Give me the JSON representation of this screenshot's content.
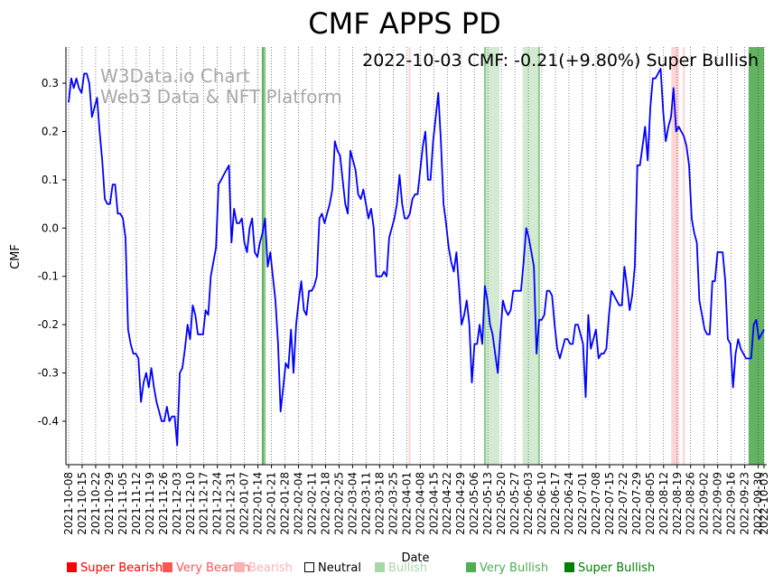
{
  "chart_data": {
    "type": "line",
    "title": "CMF APPS PD",
    "annotation": "2022-10-03 CMF: -0.21(+9.80%) Super Bullish",
    "watermark": [
      "W3Data.io Chart",
      "Web3 Data & NFT Platform"
    ],
    "xlabel": "Date",
    "ylabel": "CMF",
    "ylim": [
      -0.49,
      0.375
    ],
    "yticks": [
      0.3,
      0.2,
      0.1,
      0.0,
      -0.1,
      -0.2,
      -0.3,
      -0.4
    ],
    "x_start": "2021-10-08",
    "x_end": "2022-10-03",
    "xticks": [
      "2021-10-08",
      "2021-10-15",
      "2021-10-22",
      "2021-10-29",
      "2021-11-05",
      "2021-11-12",
      "2021-11-19",
      "2021-11-26",
      "2021-12-03",
      "2021-12-10",
      "2021-12-17",
      "2021-12-24",
      "2021-12-31",
      "2022-01-07",
      "2022-01-14",
      "2022-01-21",
      "2022-01-28",
      "2022-02-04",
      "2022-02-11",
      "2022-02-18",
      "2022-02-25",
      "2022-03-04",
      "2022-03-11",
      "2022-03-18",
      "2022-03-25",
      "2022-04-01",
      "2022-04-08",
      "2022-04-15",
      "2022-04-22",
      "2022-04-29",
      "2022-05-06",
      "2022-05-13",
      "2022-05-20",
      "2022-05-27",
      "2022-06-03",
      "2022-06-10",
      "2022-06-17",
      "2022-06-24",
      "2022-07-01",
      "2022-07-08",
      "2022-07-15",
      "2022-07-22",
      "2022-07-29",
      "2022-08-05",
      "2022-08-12",
      "2022-08-19",
      "2022-08-26",
      "2022-09-02",
      "2022-09-09",
      "2022-09-16",
      "2022-09-23",
      "2022-09-30",
      "2022-10-03"
    ],
    "series": [
      {
        "name": "CMF",
        "color": "#0000ff",
        "values": [
          0.26,
          0.31,
          0.29,
          0.31,
          0.29,
          0.28,
          0.32,
          0.32,
          0.3,
          0.23,
          0.25,
          0.27,
          0.2,
          0.14,
          0.06,
          0.05,
          0.05,
          0.09,
          0.09,
          0.03,
          0.03,
          0.02,
          -0.02,
          -0.21,
          -0.24,
          -0.26,
          -0.26,
          -0.27,
          -0.36,
          -0.32,
          -0.3,
          -0.33,
          -0.29,
          -0.33,
          -0.36,
          -0.38,
          -0.4,
          -0.4,
          -0.37,
          -0.4,
          -0.39,
          -0.39,
          -0.45,
          -0.3,
          -0.29,
          -0.25,
          -0.2,
          -0.23,
          -0.16,
          -0.18,
          -0.22,
          -0.22,
          -0.22,
          -0.17,
          -0.18,
          -0.1,
          -0.07,
          -0.04,
          0.09,
          0.1,
          0.11,
          0.12,
          0.13,
          -0.03,
          0.04,
          0.01,
          0.01,
          0.02,
          -0.03,
          -0.05,
          0.0,
          0.02,
          -0.05,
          -0.06,
          -0.03,
          -0.01,
          0.02,
          -0.08,
          -0.05,
          -0.1,
          -0.15,
          -0.24,
          -0.38,
          -0.33,
          -0.28,
          -0.29,
          -0.21,
          -0.3,
          -0.2,
          -0.15,
          -0.11,
          -0.17,
          -0.18,
          -0.13,
          -0.13,
          -0.12,
          -0.1,
          0.02,
          0.03,
          0.01,
          0.03,
          0.05,
          0.08,
          0.18,
          0.16,
          0.15,
          0.1,
          0.05,
          0.03,
          0.16,
          0.14,
          0.12,
          0.07,
          0.06,
          0.08,
          0.05,
          0.02,
          0.04,
          0.0,
          -0.1,
          -0.1,
          -0.1,
          -0.09,
          -0.1,
          -0.02,
          0.0,
          0.02,
          0.05,
          0.11,
          0.05,
          0.02,
          0.02,
          0.03,
          0.06,
          0.07,
          0.07,
          0.12,
          0.17,
          0.2,
          0.1,
          0.1,
          0.18,
          0.23,
          0.28,
          0.18,
          0.05,
          0.01,
          -0.04,
          -0.07,
          -0.09,
          -0.05,
          -0.12,
          -0.2,
          -0.18,
          -0.15,
          -0.2,
          -0.32,
          -0.24,
          -0.24,
          -0.2,
          -0.24,
          -0.12,
          -0.15,
          -0.2,
          -0.22,
          -0.26,
          -0.3,
          -0.22,
          -0.15,
          -0.17,
          -0.18,
          -0.17,
          -0.13,
          -0.13,
          -0.13,
          -0.13,
          -0.07,
          0.0,
          -0.02,
          -0.05,
          -0.08,
          -0.26,
          -0.19,
          -0.19,
          -0.18,
          -0.13,
          -0.13,
          -0.14,
          -0.2,
          -0.25,
          -0.27,
          -0.25,
          -0.23,
          -0.23,
          -0.24,
          -0.24,
          -0.2,
          -0.2,
          -0.22,
          -0.24,
          -0.35,
          -0.18,
          -0.25,
          -0.23,
          -0.21,
          -0.27,
          -0.26,
          -0.26,
          -0.25,
          -0.18,
          -0.13,
          -0.14,
          -0.15,
          -0.16,
          -0.16,
          -0.08,
          -0.12,
          -0.17,
          -0.14,
          -0.08,
          0.13,
          0.13,
          0.17,
          0.21,
          0.14,
          0.25,
          0.31,
          0.31,
          0.32,
          0.33,
          0.24,
          0.18,
          0.21,
          0.23,
          0.29,
          0.2,
          0.21,
          0.2,
          0.19,
          0.17,
          0.13,
          0.02,
          -0.01,
          -0.03,
          -0.15,
          -0.18,
          -0.21,
          -0.22,
          -0.22,
          -0.11,
          -0.11,
          -0.05,
          -0.05,
          -0.05,
          -0.11,
          -0.23,
          -0.24,
          -0.33,
          -0.26,
          -0.23,
          -0.25,
          -0.26,
          -0.27,
          -0.27,
          -0.27,
          -0.2,
          -0.19,
          -0.23,
          -0.22,
          -0.21
        ]
      }
    ],
    "bands": [
      {
        "start": "2022-01-16",
        "end": "2022-01-17",
        "level": "Super Bullish"
      },
      {
        "start": "2022-01-17",
        "end": "2022-01-18",
        "level": "Very Bullish"
      },
      {
        "start": "2022-04-02",
        "end": "2022-04-03",
        "level": "Bearish"
      },
      {
        "start": "2022-05-11",
        "end": "2022-05-12",
        "level": "Very Bullish"
      },
      {
        "start": "2022-05-12",
        "end": "2022-05-19",
        "level": "Bullish"
      },
      {
        "start": "2022-05-31",
        "end": "2022-06-08",
        "level": "Bullish"
      },
      {
        "start": "2022-06-08",
        "end": "2022-06-09",
        "level": "Very Bullish"
      },
      {
        "start": "2022-08-16",
        "end": "2022-08-20",
        "level": "Bearish"
      },
      {
        "start": "2022-08-22",
        "end": "2022-08-23",
        "level": "Bearish"
      },
      {
        "start": "2022-09-25",
        "end": "2022-10-03",
        "level": "Super Bullish"
      }
    ],
    "legend": [
      {
        "label": "Super Bearish",
        "color": "#ff0000"
      },
      {
        "label": "Very Bearish",
        "color": "#ff5555"
      },
      {
        "label": "Bearish",
        "color": "#ffb0b0"
      },
      {
        "label": "Neutral",
        "color": "#000000"
      },
      {
        "label": "Bullish",
        "color": "#a8d8a8"
      },
      {
        "label": "Very Bullish",
        "color": "#4caf50"
      },
      {
        "label": "Super Bullish",
        "color": "#008000"
      }
    ],
    "band_colors": {
      "Super Bullish": "#62b462",
      "Very Bullish": "#8ecb8e",
      "Bullish": "#d2ead2",
      "Bearish": "#ffd4d4"
    }
  }
}
